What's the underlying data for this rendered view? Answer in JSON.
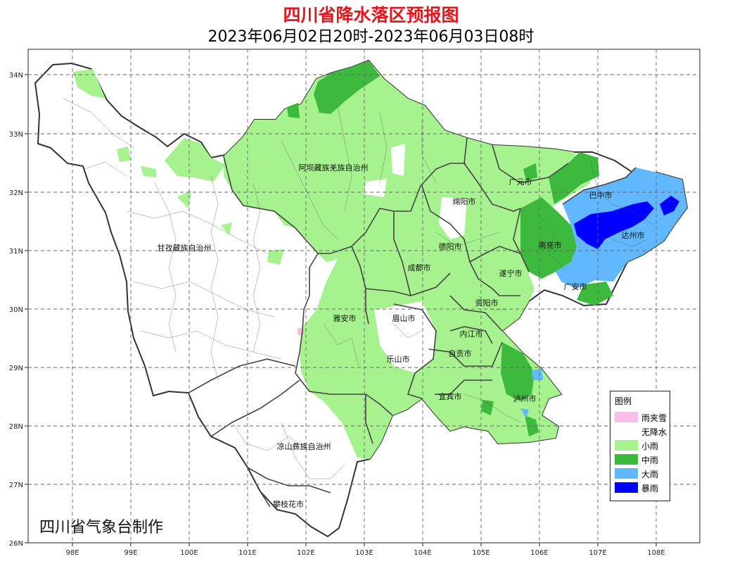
{
  "title": "四川省降水落区预报图",
  "subtitle": "2023年06月02日20时-2023年06月03日08时",
  "credit": "四川省气象台制作",
  "axes": {
    "x_ticks": [
      "98E",
      "99E",
      "100E",
      "101E",
      "102E",
      "103E",
      "104E",
      "105E",
      "106E",
      "107E",
      "108E"
    ],
    "y_ticks": [
      "34N",
      "33N",
      "32N",
      "31N",
      "30N",
      "29N",
      "28N",
      "27N",
      "26N"
    ]
  },
  "legend": {
    "title": "图例",
    "items": [
      {
        "label": "雨夹雪",
        "color": "#fcbcec"
      },
      {
        "label": "无降水",
        "color": "#ffffff"
      },
      {
        "label": "小雨",
        "color": "#a6f28f"
      },
      {
        "label": "中雨",
        "color": "#3dba3d"
      },
      {
        "label": "大雨",
        "color": "#61b8ff"
      },
      {
        "label": "暴雨",
        "color": "#0000fe"
      }
    ]
  },
  "regions": [
    {
      "name": "阿坝藏族羌族自治州"
    },
    {
      "name": "甘孜藏族自治州"
    },
    {
      "name": "凉山彝族自治州"
    },
    {
      "name": "攀枝花市"
    },
    {
      "name": "雅安市"
    },
    {
      "name": "眉山市"
    },
    {
      "name": "乐山市"
    },
    {
      "name": "成都市"
    },
    {
      "name": "德阳市"
    },
    {
      "name": "绵阳市"
    },
    {
      "name": "广元市"
    },
    {
      "name": "巴中市"
    },
    {
      "name": "达州市"
    },
    {
      "name": "南充市"
    },
    {
      "name": "遂宁市"
    },
    {
      "name": "广安市"
    },
    {
      "name": "资阳市"
    },
    {
      "name": "内江市"
    },
    {
      "name": "自贡市"
    },
    {
      "name": "宜宾市"
    },
    {
      "name": "泸州市"
    }
  ]
}
